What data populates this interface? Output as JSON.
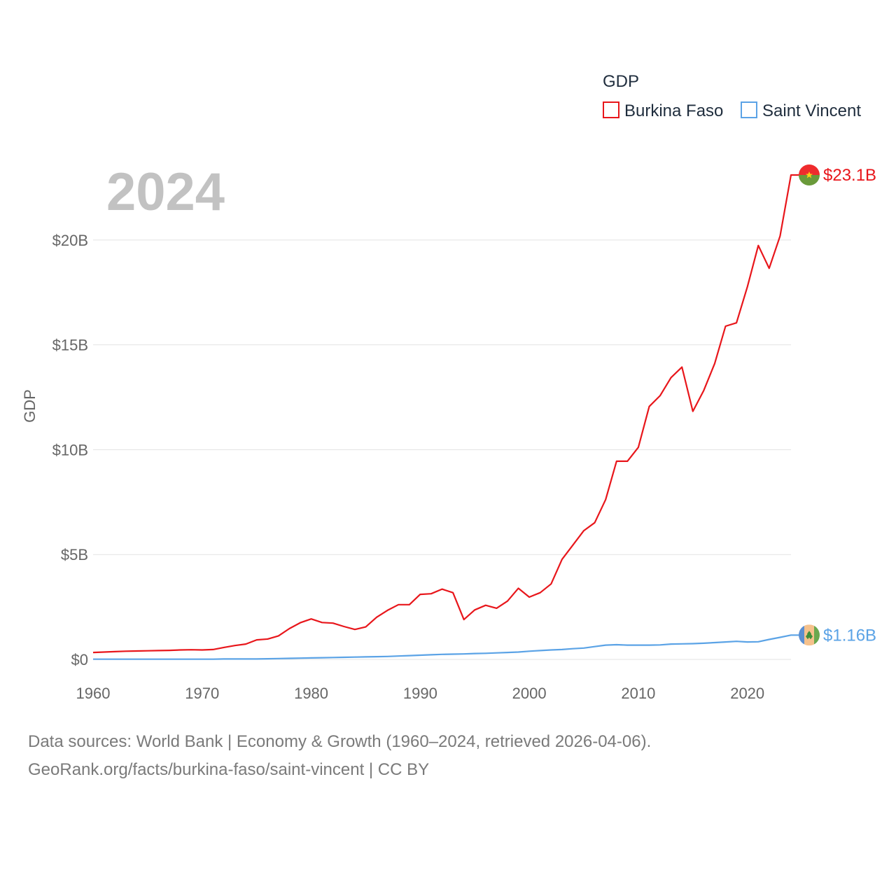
{
  "chart_data": {
    "type": "line",
    "title": "",
    "current_year_label": "2024",
    "xlabel": "",
    "ylabel": "GDP",
    "xlim": [
      1960,
      2024
    ],
    "ylim": [
      0,
      23.1
    ],
    "x_ticks": [
      1960,
      1970,
      1980,
      1990,
      2000,
      2010,
      2020
    ],
    "x_tick_labels": [
      "1960",
      "1970",
      "1980",
      "1990",
      "2000",
      "2010",
      "2020"
    ],
    "y_ticks": [
      0,
      5,
      10,
      15,
      20
    ],
    "y_tick_labels": [
      "$0",
      "$5B",
      "$10B",
      "$15B",
      "$20B"
    ],
    "grid": true,
    "legend": {
      "title": "GDP",
      "position": "top-right",
      "entries": [
        "Burkina Faso",
        "Saint Vincent"
      ]
    },
    "x": [
      1960,
      1961,
      1962,
      1963,
      1964,
      1965,
      1966,
      1967,
      1968,
      1969,
      1970,
      1971,
      1972,
      1973,
      1974,
      1975,
      1976,
      1977,
      1978,
      1979,
      1980,
      1981,
      1982,
      1983,
      1984,
      1985,
      1986,
      1987,
      1988,
      1989,
      1990,
      1991,
      1992,
      1993,
      1994,
      1995,
      1996,
      1997,
      1998,
      1999,
      2000,
      2001,
      2002,
      2003,
      2004,
      2005,
      2006,
      2007,
      2008,
      2009,
      2010,
      2011,
      2012,
      2013,
      2014,
      2015,
      2016,
      2017,
      2018,
      2019,
      2020,
      2021,
      2022,
      2023,
      2024
    ],
    "series": [
      {
        "name": "Burkina Faso",
        "color": "#e8161b",
        "end_label": "$23.1B",
        "values": [
          0.33,
          0.35,
          0.37,
          0.39,
          0.4,
          0.41,
          0.42,
          0.43,
          0.45,
          0.46,
          0.45,
          0.47,
          0.57,
          0.66,
          0.73,
          0.93,
          0.97,
          1.12,
          1.47,
          1.75,
          1.93,
          1.76,
          1.73,
          1.57,
          1.43,
          1.55,
          2.01,
          2.34,
          2.61,
          2.61,
          3.1,
          3.13,
          3.35,
          3.18,
          1.9,
          2.36,
          2.58,
          2.44,
          2.78,
          3.39,
          2.97,
          3.18,
          3.6,
          4.77,
          5.45,
          6.14,
          6.52,
          7.62,
          9.45,
          9.45,
          10.11,
          12.06,
          12.58,
          13.44,
          13.94,
          11.83,
          12.83,
          14.11,
          15.89,
          16.05,
          17.77,
          19.74,
          18.65,
          20.19,
          23.1
        ]
      },
      {
        "name": "Saint Vincent",
        "color": "#5ba3e6",
        "end_label": "$1.16B",
        "values": [
          0.01,
          0.01,
          0.01,
          0.01,
          0.01,
          0.01,
          0.01,
          0.01,
          0.01,
          0.01,
          0.01,
          0.01,
          0.02,
          0.02,
          0.02,
          0.02,
          0.03,
          0.04,
          0.05,
          0.06,
          0.07,
          0.08,
          0.09,
          0.1,
          0.11,
          0.12,
          0.13,
          0.14,
          0.16,
          0.18,
          0.2,
          0.22,
          0.24,
          0.25,
          0.26,
          0.28,
          0.29,
          0.31,
          0.33,
          0.35,
          0.39,
          0.42,
          0.45,
          0.47,
          0.51,
          0.54,
          0.61,
          0.68,
          0.7,
          0.68,
          0.68,
          0.68,
          0.69,
          0.73,
          0.74,
          0.75,
          0.77,
          0.8,
          0.83,
          0.86,
          0.83,
          0.84,
          0.95,
          1.05,
          1.16
        ]
      }
    ]
  },
  "footer": {
    "line1": "Data sources: World Bank | Economy & Growth (1960–2024, retrieved 2026-04-06).",
    "line2": "GeoRank.org/facts/burkina-faso/saint-vincent | CC BY"
  }
}
